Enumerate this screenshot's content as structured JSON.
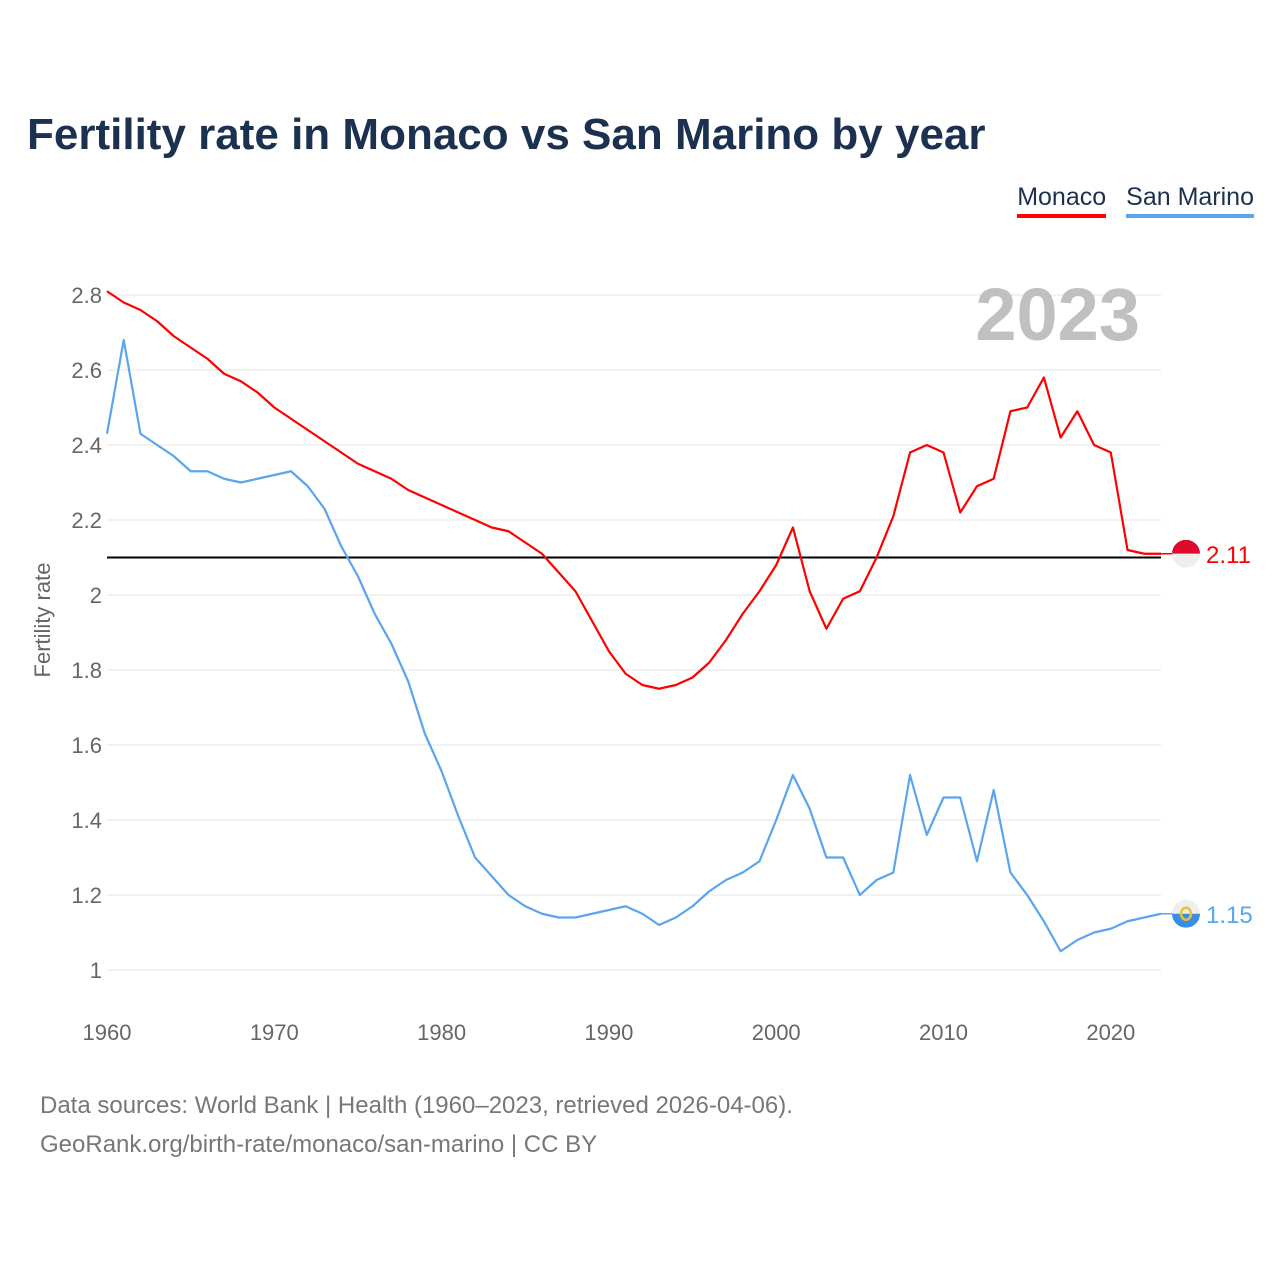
{
  "title": "Fertility rate in Monaco vs San Marino by year",
  "year_label": "2023",
  "footer": {
    "line1": "Data sources: World Bank | Health (1960–2023, retrieved 2026-04-06).",
    "line2": "GeoRank.org/birth-rate/monaco/san-marino | CC BY"
  },
  "chart_data": {
    "type": "line",
    "title": "Fertility rate in Monaco vs San Marino by year",
    "xlabel": "",
    "ylabel": "Fertility rate",
    "xlim": [
      1960,
      2023
    ],
    "ylim": [
      1,
      2.8
    ],
    "xticks": [
      1960,
      1970,
      1980,
      1990,
      2000,
      2010,
      2020
    ],
    "yticks": [
      1,
      1.2,
      1.4,
      1.6,
      1.8,
      2,
      2.2,
      2.4,
      2.6,
      2.8
    ],
    "ytick_labels": [
      "1",
      "1.2",
      "1.4",
      "1.6",
      "1.8",
      "2",
      "2.2",
      "2.4",
      "2.6",
      "2.8"
    ],
    "reference_line": 2.1,
    "grid": true,
    "legend_position": "top-right",
    "x_start": 1960,
    "series": [
      {
        "name": "Monaco",
        "color": "#ff0000",
        "end_label": "2.11",
        "values": [
          2.81,
          2.78,
          2.76,
          2.73,
          2.69,
          2.66,
          2.63,
          2.59,
          2.57,
          2.54,
          2.5,
          2.47,
          2.44,
          2.41,
          2.38,
          2.35,
          2.33,
          2.31,
          2.28,
          2.26,
          2.24,
          2.22,
          2.2,
          2.18,
          2.17,
          2.14,
          2.11,
          2.06,
          2.01,
          1.93,
          1.85,
          1.79,
          1.76,
          1.75,
          1.76,
          1.78,
          1.82,
          1.88,
          1.95,
          2.01,
          2.08,
          2.18,
          2.01,
          1.91,
          1.99,
          2.01,
          2.1,
          2.21,
          2.38,
          2.4,
          2.38,
          2.22,
          2.29,
          2.31,
          2.49,
          2.5,
          2.58,
          2.42,
          2.49,
          2.4,
          2.38,
          2.12,
          2.11,
          2.11
        ]
      },
      {
        "name": "San Marino",
        "color": "#5aa5ec",
        "end_label": "1.15",
        "values": [
          2.43,
          2.68,
          2.43,
          2.4,
          2.37,
          2.33,
          2.33,
          2.31,
          2.3,
          2.31,
          2.32,
          2.33,
          2.29,
          2.23,
          2.13,
          2.05,
          1.95,
          1.87,
          1.77,
          1.63,
          1.53,
          1.41,
          1.3,
          1.25,
          1.2,
          1.17,
          1.15,
          1.14,
          1.14,
          1.15,
          1.16,
          1.17,
          1.15,
          1.12,
          1.14,
          1.17,
          1.21,
          1.24,
          1.26,
          1.29,
          1.4,
          1.52,
          1.43,
          1.3,
          1.3,
          1.2,
          1.24,
          1.26,
          1.52,
          1.36,
          1.46,
          1.46,
          1.29,
          1.48,
          1.26,
          1.2,
          1.13,
          1.05,
          1.08,
          1.1,
          1.11,
          1.13,
          1.14,
          1.15
        ]
      }
    ]
  }
}
